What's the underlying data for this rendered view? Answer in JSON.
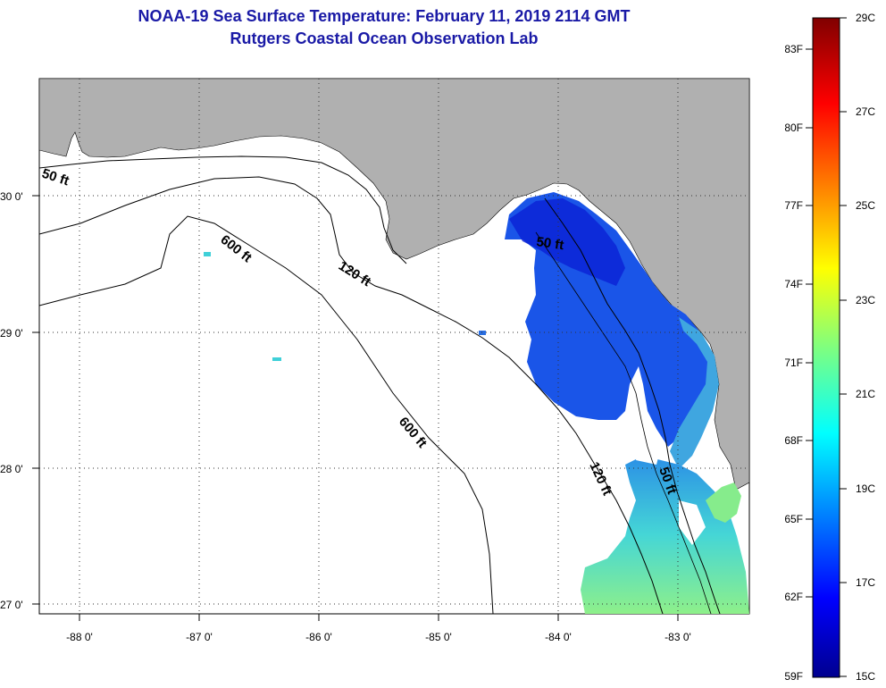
{
  "title": {
    "line1": "NOAA-19 Sea Surface Temperature:  February 11, 2019 2114 GMT",
    "line2": "Rutgers Coastal Ocean Observation Lab"
  },
  "map": {
    "lat_ticks": [
      "27 0'",
      "28 0'",
      "29 0'",
      "30 0'"
    ],
    "lon_ticks": [
      "-88 0'",
      "-87 0'",
      "-86 0'",
      "-85 0'",
      "-84 0'",
      "-83 0'"
    ],
    "contour_labels": [
      "50 ft",
      "600 ft",
      "120 ft",
      "600 ft",
      "50 ft",
      "120 ft",
      "50 ft"
    ],
    "colors": {
      "land": "#b0b0b0",
      "no_data": "#ffffff",
      "warm_water": "#7ee89a",
      "cold_water": "#1133cc"
    }
  },
  "colorbar": {
    "fahrenheit_labels": [
      "83F",
      "80F",
      "77F",
      "74F",
      "71F",
      "68F",
      "65F",
      "62F",
      "59F"
    ],
    "celsius_labels": [
      "29C",
      "27C",
      "25C",
      "23C",
      "21C",
      "19C",
      "17C",
      "15C"
    ],
    "range_c": [
      15,
      29
    ],
    "range_f": [
      59,
      84.2
    ]
  }
}
